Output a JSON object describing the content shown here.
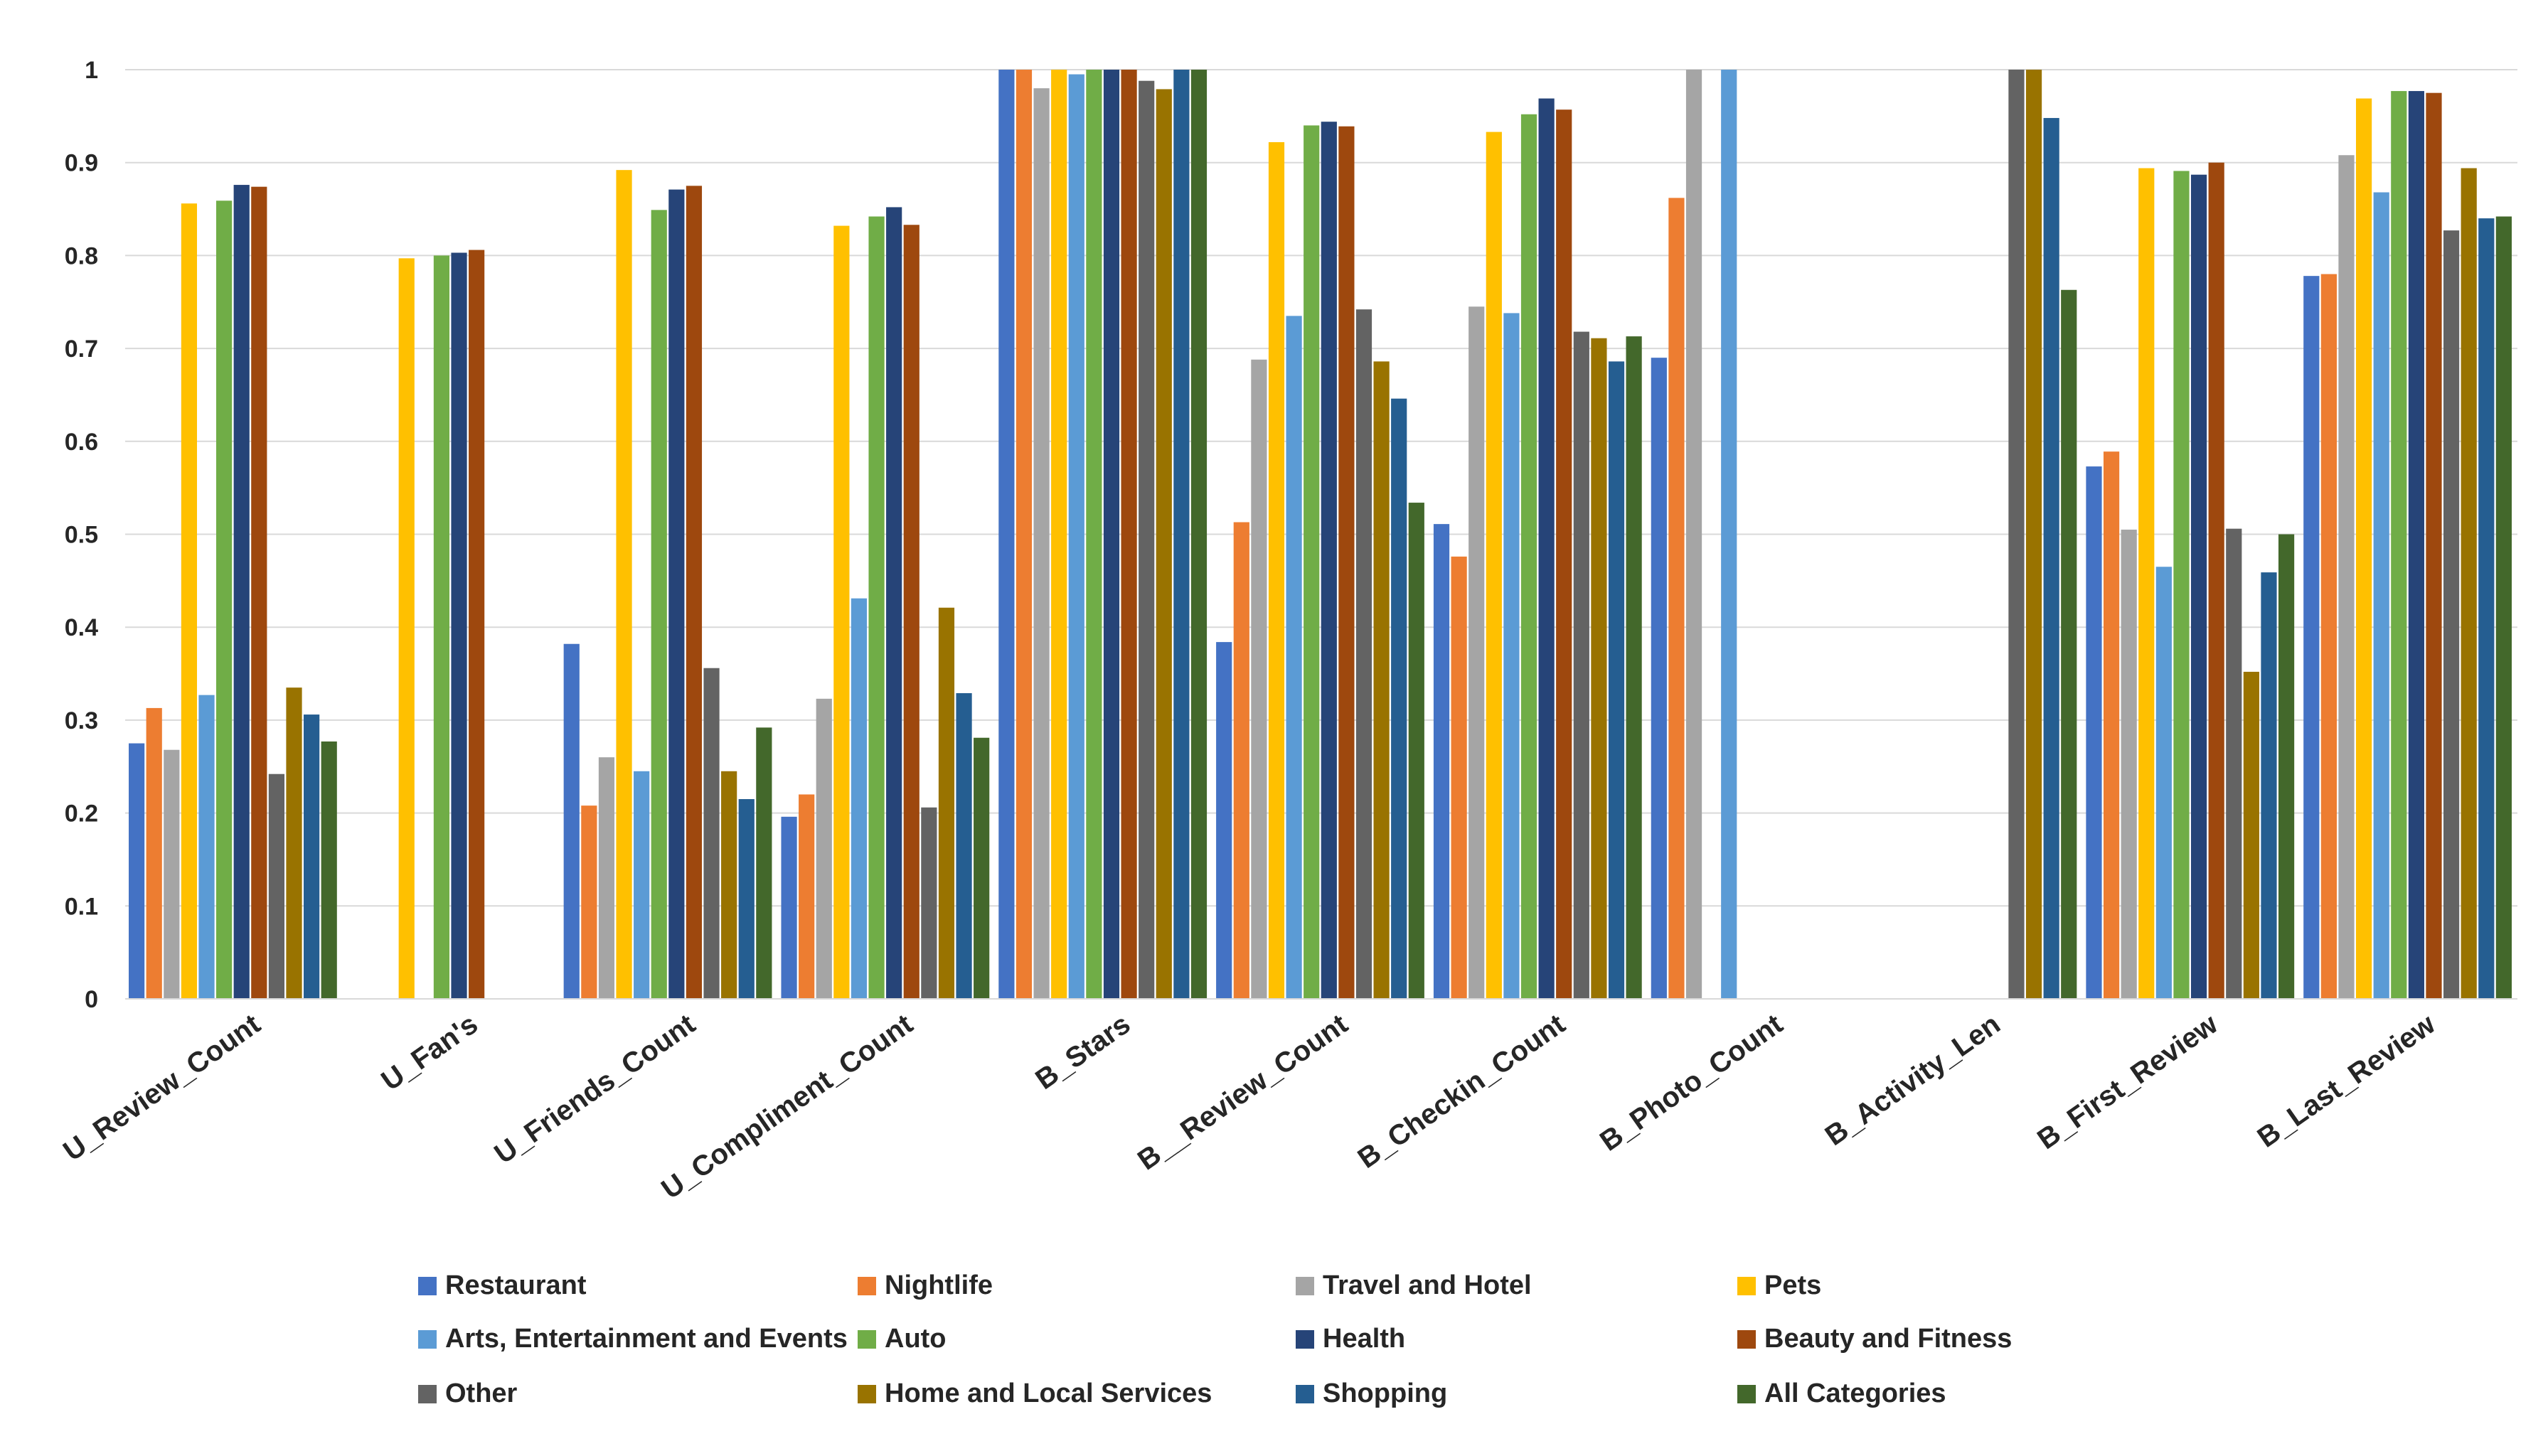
{
  "chart_data": {
    "type": "bar",
    "title": "",
    "xlabel": "",
    "ylabel": "",
    "ylim": [
      0,
      1
    ],
    "yticks": [
      "0",
      "0.1",
      "0.2",
      "0.3",
      "0.4",
      "0.5",
      "0.6",
      "0.7",
      "0.8",
      "0.9",
      "1"
    ],
    "grid": true,
    "legend_position": "bottom",
    "categories": [
      "U_Review_Count",
      "U_Fan's",
      "U_Friends_Count",
      "U_Compliment_Count",
      "B_Stars",
      "B__Review_Count",
      "B_Checkin_Count",
      "B_Photo_Count",
      "B_Activity_Len",
      "B_First_Review",
      "B_Last_Review"
    ],
    "series": [
      {
        "name": "Restaurant",
        "color": "#4472C4",
        "values": [
          0.275,
          null,
          0.382,
          0.196,
          1.0,
          0.384,
          0.511,
          0.69,
          null,
          0.573,
          0.778
        ]
      },
      {
        "name": "Nightlife",
        "color": "#ED7D31",
        "values": [
          0.313,
          null,
          0.208,
          0.22,
          1.0,
          0.513,
          0.476,
          0.862,
          null,
          0.589,
          0.78
        ]
      },
      {
        "name": "Travel and Hotel",
        "color": "#A5A5A5",
        "values": [
          0.268,
          null,
          0.26,
          0.323,
          0.98,
          0.688,
          0.745,
          1.0,
          null,
          0.505,
          0.908
        ]
      },
      {
        "name": "Pets",
        "color": "#FFC000",
        "values": [
          0.856,
          0.797,
          0.892,
          0.832,
          1.0,
          0.922,
          0.933,
          null,
          null,
          0.894,
          0.969
        ]
      },
      {
        "name": "Arts, Entertainment and Events",
        "color": "#5B9BD5",
        "values": [
          0.327,
          null,
          0.245,
          0.431,
          0.995,
          0.735,
          0.738,
          1.0,
          null,
          0.465,
          0.868
        ]
      },
      {
        "name": "Auto",
        "color": "#70AD47",
        "values": [
          0.859,
          0.8,
          0.849,
          0.842,
          1.0,
          0.94,
          0.952,
          null,
          null,
          0.891,
          0.977
        ]
      },
      {
        "name": "Health",
        "color": "#264478",
        "values": [
          0.876,
          0.803,
          0.871,
          0.852,
          1.0,
          0.944,
          0.969,
          null,
          null,
          0.887,
          0.977
        ]
      },
      {
        "name": "Beauty and Fitness",
        "color": "#9E480E",
        "values": [
          0.874,
          0.806,
          0.875,
          0.833,
          1.0,
          0.939,
          0.957,
          null,
          null,
          0.9,
          0.975
        ]
      },
      {
        "name": "Other",
        "color": "#636363",
        "values": [
          0.242,
          null,
          0.356,
          0.206,
          0.988,
          0.742,
          0.718,
          null,
          1.0,
          0.506,
          0.827
        ]
      },
      {
        "name": "Home and Local Services",
        "color": "#997300",
        "values": [
          0.335,
          null,
          0.245,
          0.421,
          0.979,
          0.686,
          0.711,
          null,
          1.0,
          0.352,
          0.894
        ]
      },
      {
        "name": "Shopping",
        "color": "#255E91",
        "values": [
          0.306,
          null,
          0.215,
          0.329,
          1.0,
          0.646,
          0.686,
          null,
          0.948,
          0.459,
          0.84
        ]
      },
      {
        "name": "All Categories",
        "color": "#43682B",
        "values": [
          0.277,
          null,
          0.292,
          0.281,
          1.0,
          0.534,
          0.713,
          null,
          0.763,
          0.5,
          0.842
        ]
      }
    ]
  }
}
